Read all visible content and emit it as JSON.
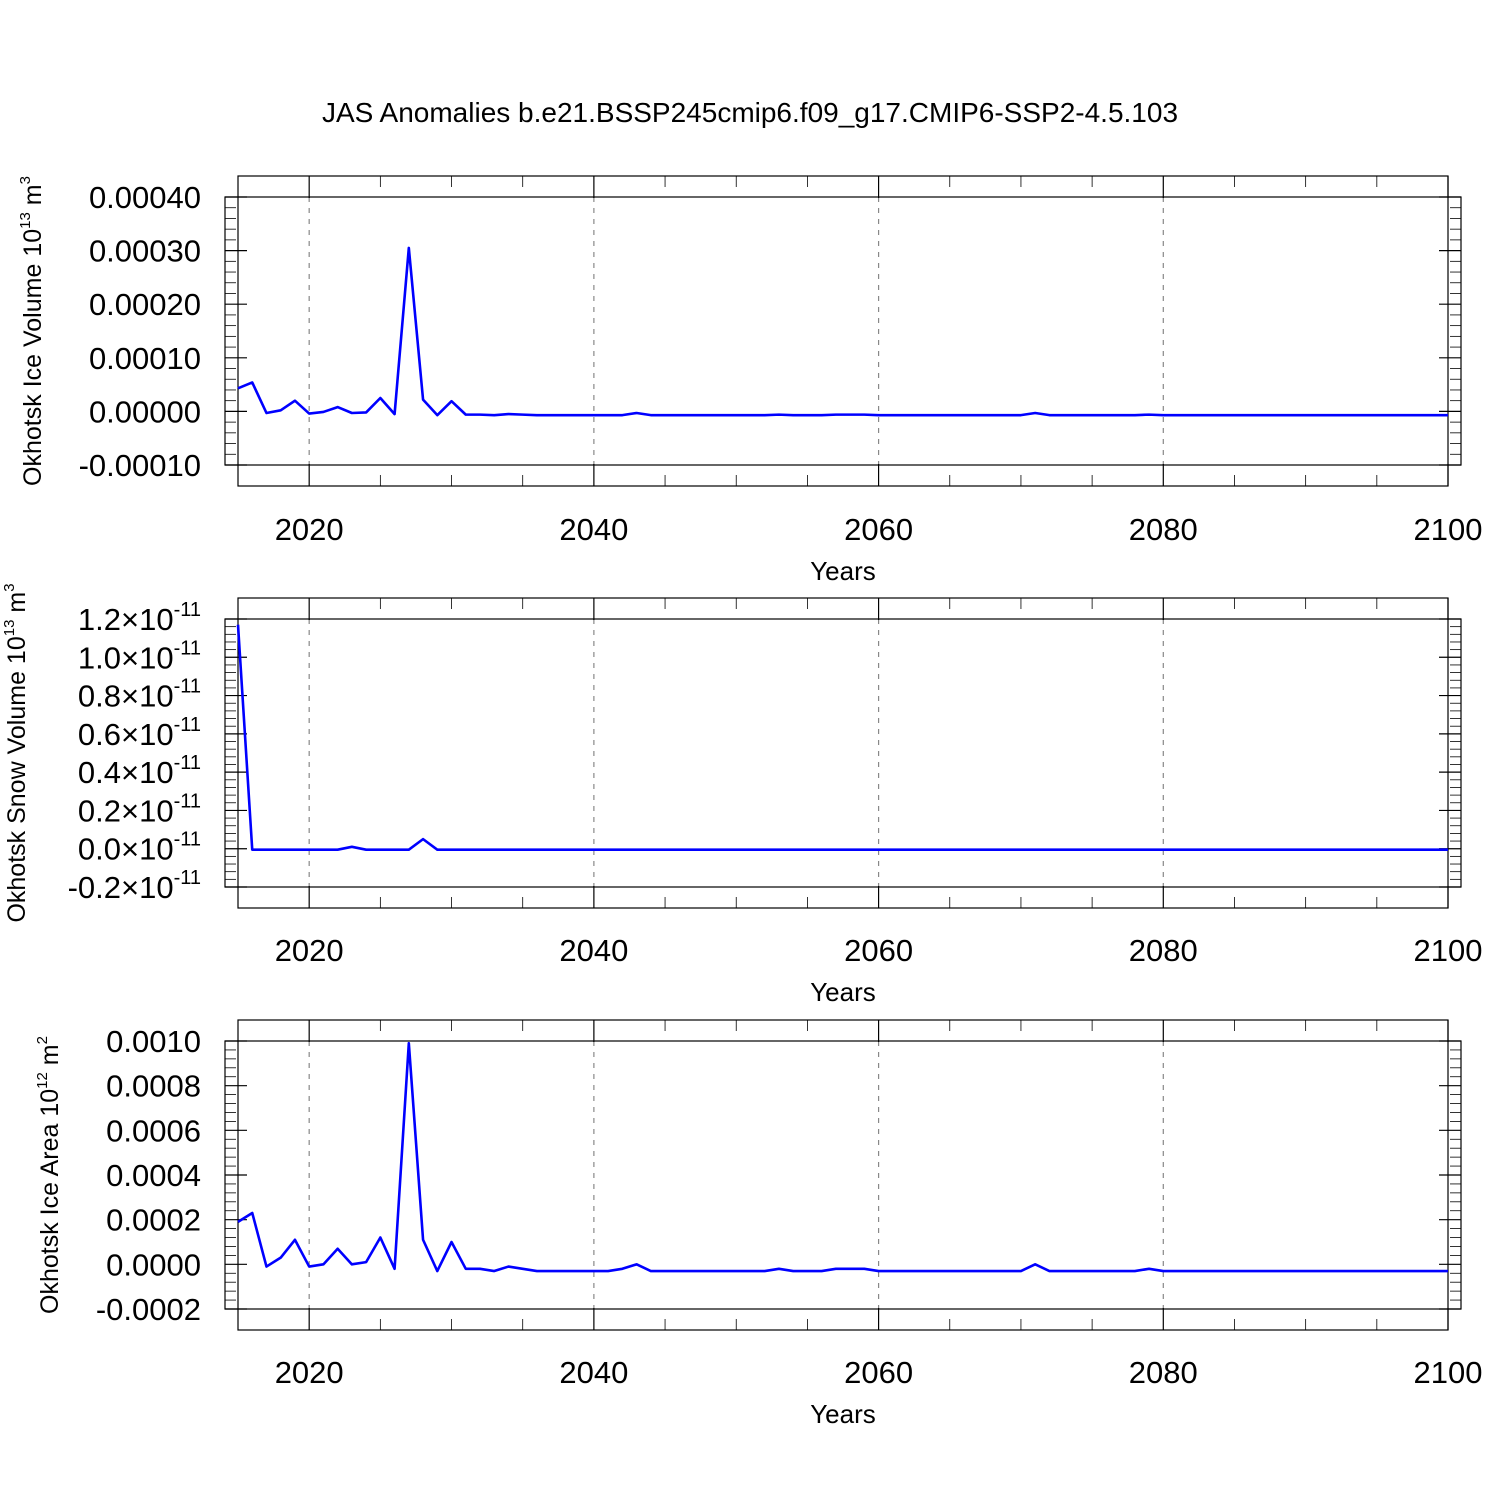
{
  "title": "JAS Anomalies b.e21.BSSP245cmip6.f09_g17.CMIP6-SSP2-4.5.103",
  "colors": {
    "series": "#0000ff",
    "axes": "#000000",
    "grid": "#888888"
  },
  "chart_data": [
    {
      "type": "line",
      "ylabel": "Okhotsk Ice Volume 10",
      "ylabel_exp": "13",
      "ylabel_unit": " m",
      "ylabel_unit_exp": "3",
      "xlabel": "Years",
      "xlim": [
        2015,
        2100
      ],
      "ylim": [
        -0.0001,
        0.0004
      ],
      "x_ticks": [
        "2020",
        "2040",
        "2060",
        "2080",
        "2100"
      ],
      "y_ticks": [
        {
          "v": 0.0004,
          "label": "0.00040"
        },
        {
          "v": 0.0003,
          "label": "0.00030"
        },
        {
          "v": 0.0002,
          "label": "0.00020"
        },
        {
          "v": 0.0001,
          "label": "0.00010"
        },
        {
          "v": 0.0,
          "label": "0.00000"
        },
        {
          "v": -0.0001,
          "label": "-0.00010"
        }
      ],
      "grid": true,
      "x": [
        2015,
        2016,
        2017,
        2018,
        2019,
        2020,
        2021,
        2022,
        2023,
        2024,
        2025,
        2026,
        2027,
        2028,
        2029,
        2030,
        2031,
        2032,
        2033,
        2034,
        2035,
        2036,
        2037,
        2038,
        2039,
        2040,
        2041,
        2042,
        2043,
        2044,
        2045,
        2046,
        2047,
        2048,
        2049,
        2050,
        2051,
        2052,
        2053,
        2054,
        2055,
        2056,
        2057,
        2058,
        2059,
        2060,
        2061,
        2062,
        2063,
        2064,
        2065,
        2066,
        2067,
        2068,
        2069,
        2070,
        2071,
        2072,
        2073,
        2074,
        2075,
        2076,
        2077,
        2078,
        2079,
        2080,
        2081,
        2082,
        2083,
        2084,
        2085,
        2086,
        2087,
        2088,
        2089,
        2090,
        2091,
        2092,
        2093,
        2094,
        2095,
        2096,
        2097,
        2098,
        2099,
        2100
      ],
      "series": [
        {
          "values": [
            4.3e-05,
            5.4e-05,
            -3e-06,
            2e-06,
            2e-05,
            -4e-06,
            -1e-06,
            8e-06,
            -3e-06,
            -2e-06,
            2.5e-05,
            -5e-06,
            0.000305,
            2.2e-05,
            -7e-06,
            1.9e-05,
            -6e-06,
            -6e-06,
            -7e-06,
            -5e-06,
            -6e-06,
            -7e-06,
            -7e-06,
            -7e-06,
            -7e-06,
            -7e-06,
            -7e-06,
            -7e-06,
            -3e-06,
            -7e-06,
            -7e-06,
            -7e-06,
            -7e-06,
            -7e-06,
            -7e-06,
            -7e-06,
            -7e-06,
            -7e-06,
            -6e-06,
            -7e-06,
            -7e-06,
            -7e-06,
            -6e-06,
            -6e-06,
            -6e-06,
            -7e-06,
            -7e-06,
            -7e-06,
            -7e-06,
            -7e-06,
            -7e-06,
            -7e-06,
            -7e-06,
            -7e-06,
            -7e-06,
            -7e-06,
            -3e-06,
            -7e-06,
            -7e-06,
            -7e-06,
            -7e-06,
            -7e-06,
            -7e-06,
            -7e-06,
            -6e-06,
            -7e-06,
            -7e-06,
            -7e-06,
            -7e-06,
            -7e-06,
            -7e-06,
            -7e-06,
            -7e-06,
            -7e-06,
            -7e-06,
            -7e-06,
            -7e-06,
            -7e-06,
            -7e-06,
            -7e-06,
            -7e-06,
            -7e-06,
            -7e-06,
            -7e-06,
            -7e-06,
            -7e-06
          ]
        }
      ]
    },
    {
      "type": "line",
      "ylabel": "Okhotsk Snow Volume 10",
      "ylabel_exp": "13",
      "ylabel_unit": " m",
      "ylabel_unit_exp": "3",
      "xlabel": "Years",
      "xlim": [
        2015,
        2100
      ],
      "ylim": [
        -2e-12,
        1.2e-11
      ],
      "x_ticks": [
        "2020",
        "2040",
        "2060",
        "2080",
        "2100"
      ],
      "y_ticks": [
        {
          "v": 1.2e-11,
          "label": "1.2×10",
          "exp": "-11"
        },
        {
          "v": 1e-11,
          "label": "1.0×10",
          "exp": "-11"
        },
        {
          "v": 8e-12,
          "label": "0.8×10",
          "exp": "-11"
        },
        {
          "v": 6e-12,
          "label": "0.6×10",
          "exp": "-11"
        },
        {
          "v": 4e-12,
          "label": "0.4×10",
          "exp": "-11"
        },
        {
          "v": 2e-12,
          "label": "0.2×10",
          "exp": "-11"
        },
        {
          "v": 0.0,
          "label": "0.0×10",
          "exp": "-11"
        },
        {
          "v": -2e-12,
          "label": "-0.2×10",
          "exp": "-11"
        }
      ],
      "grid": true,
      "x": [
        2015,
        2016,
        2017,
        2018,
        2019,
        2020,
        2021,
        2022,
        2023,
        2024,
        2025,
        2026,
        2027,
        2028,
        2029,
        2030,
        2031,
        2032,
        2033,
        2034,
        2035,
        2036,
        2037,
        2038,
        2039,
        2040,
        2041,
        2042,
        2043,
        2044,
        2045,
        2046,
        2047,
        2048,
        2049,
        2050,
        2051,
        2052,
        2053,
        2054,
        2055,
        2056,
        2057,
        2058,
        2059,
        2060,
        2061,
        2062,
        2063,
        2064,
        2065,
        2066,
        2067,
        2068,
        2069,
        2070,
        2071,
        2072,
        2073,
        2074,
        2075,
        2076,
        2077,
        2078,
        2079,
        2080,
        2081,
        2082,
        2083,
        2084,
        2085,
        2086,
        2087,
        2088,
        2089,
        2090,
        2091,
        2092,
        2093,
        2094,
        2095,
        2096,
        2097,
        2098,
        2099,
        2100
      ],
      "series": [
        {
          "values": [
            1.17e-11,
            -5e-14,
            -5e-14,
            -5e-14,
            -5e-14,
            -5e-14,
            -5e-14,
            -5e-14,
            1e-13,
            -5e-14,
            -5e-14,
            -5e-14,
            -5e-14,
            5e-13,
            -5e-14,
            -5e-14,
            -5e-14,
            -5e-14,
            -5e-14,
            -5e-14,
            -5e-14,
            -5e-14,
            -5e-14,
            -5e-14,
            -5e-14,
            -5e-14,
            -5e-14,
            -5e-14,
            -5e-14,
            -5e-14,
            -5e-14,
            -5e-14,
            -5e-14,
            -5e-14,
            -5e-14,
            -5e-14,
            -5e-14,
            -5e-14,
            -5e-14,
            -5e-14,
            -5e-14,
            -5e-14,
            -5e-14,
            -5e-14,
            -5e-14,
            -5e-14,
            -5e-14,
            -5e-14,
            -5e-14,
            -5e-14,
            -5e-14,
            -5e-14,
            -5e-14,
            -5e-14,
            -5e-14,
            -5e-14,
            -5e-14,
            -5e-14,
            -5e-14,
            -5e-14,
            -5e-14,
            -5e-14,
            -5e-14,
            -5e-14,
            -5e-14,
            -5e-14,
            -5e-14,
            -5e-14,
            -5e-14,
            -5e-14,
            -5e-14,
            -5e-14,
            -5e-14,
            -5e-14,
            -5e-14,
            -5e-14,
            -5e-14,
            -5e-14,
            -5e-14,
            -5e-14,
            -5e-14,
            -5e-14,
            -5e-14,
            -5e-14,
            -5e-14,
            -5e-14
          ]
        }
      ]
    },
    {
      "type": "line",
      "ylabel": "Okhotsk Ice Area 10",
      "ylabel_exp": "12",
      "ylabel_unit": " m",
      "ylabel_unit_exp": "2",
      "xlabel": "Years",
      "xlim": [
        2015,
        2100
      ],
      "ylim": [
        -0.0002,
        0.001
      ],
      "x_ticks": [
        "2020",
        "2040",
        "2060",
        "2080",
        "2100"
      ],
      "y_ticks": [
        {
          "v": 0.001,
          "label": "0.0010"
        },
        {
          "v": 0.0008,
          "label": "0.0008"
        },
        {
          "v": 0.0006,
          "label": "0.0006"
        },
        {
          "v": 0.0004,
          "label": "0.0004"
        },
        {
          "v": 0.0002,
          "label": "0.0002"
        },
        {
          "v": 0.0,
          "label": "0.0000"
        },
        {
          "v": -0.0002,
          "label": "-0.0002"
        }
      ],
      "grid": true,
      "x": [
        2015,
        2016,
        2017,
        2018,
        2019,
        2020,
        2021,
        2022,
        2023,
        2024,
        2025,
        2026,
        2027,
        2028,
        2029,
        2030,
        2031,
        2032,
        2033,
        2034,
        2035,
        2036,
        2037,
        2038,
        2039,
        2040,
        2041,
        2042,
        2043,
        2044,
        2045,
        2046,
        2047,
        2048,
        2049,
        2050,
        2051,
        2052,
        2053,
        2054,
        2055,
        2056,
        2057,
        2058,
        2059,
        2060,
        2061,
        2062,
        2063,
        2064,
        2065,
        2066,
        2067,
        2068,
        2069,
        2070,
        2071,
        2072,
        2073,
        2074,
        2075,
        2076,
        2077,
        2078,
        2079,
        2080,
        2081,
        2082,
        2083,
        2084,
        2085,
        2086,
        2087,
        2088,
        2089,
        2090,
        2091,
        2092,
        2093,
        2094,
        2095,
        2096,
        2097,
        2098,
        2099,
        2100
      ],
      "series": [
        {
          "values": [
            0.00019,
            0.00023,
            -1e-05,
            3e-05,
            0.00011,
            -1e-05,
            0.0,
            7e-05,
            0.0,
            1e-05,
            0.00012,
            -2e-05,
            0.00099,
            0.00011,
            -3e-05,
            0.0001,
            -2e-05,
            -2e-05,
            -3e-05,
            -1e-05,
            -2e-05,
            -3e-05,
            -3e-05,
            -3e-05,
            -3e-05,
            -3e-05,
            -3e-05,
            -2e-05,
            0.0,
            -3e-05,
            -3e-05,
            -3e-05,
            -3e-05,
            -3e-05,
            -3e-05,
            -3e-05,
            -3e-05,
            -3e-05,
            -2e-05,
            -3e-05,
            -3e-05,
            -3e-05,
            -2e-05,
            -2e-05,
            -2e-05,
            -3e-05,
            -3e-05,
            -3e-05,
            -3e-05,
            -3e-05,
            -3e-05,
            -3e-05,
            -3e-05,
            -3e-05,
            -3e-05,
            -3e-05,
            0.0,
            -3e-05,
            -3e-05,
            -3e-05,
            -3e-05,
            -3e-05,
            -3e-05,
            -3e-05,
            -2e-05,
            -3e-05,
            -3e-05,
            -3e-05,
            -3e-05,
            -3e-05,
            -3e-05,
            -3e-05,
            -3e-05,
            -3e-05,
            -3e-05,
            -3e-05,
            -3e-05,
            -3e-05,
            -3e-05,
            -3e-05,
            -3e-05,
            -3e-05,
            -3e-05,
            -3e-05,
            -3e-05,
            -3e-05
          ]
        }
      ]
    }
  ]
}
